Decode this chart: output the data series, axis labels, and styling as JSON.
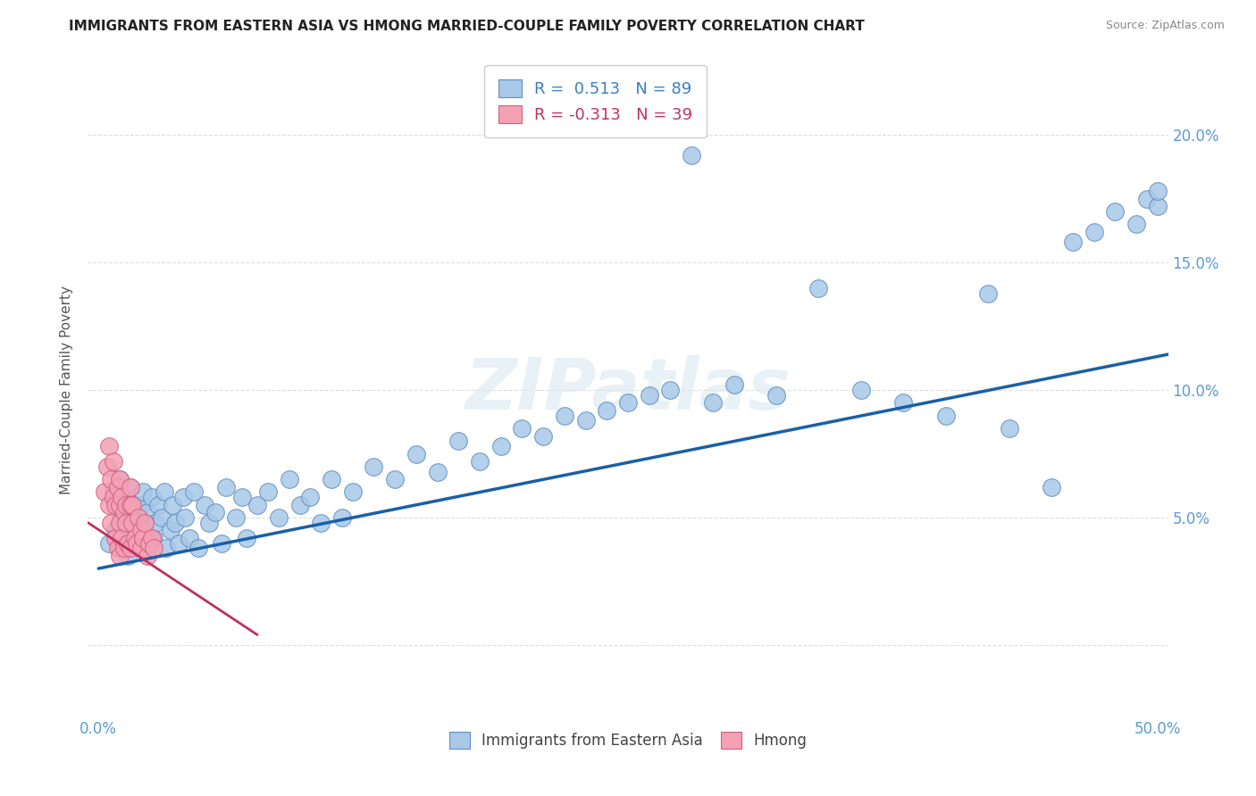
{
  "title": "IMMIGRANTS FROM EASTERN ASIA VS HMONG MARRIED-COUPLE FAMILY POVERTY CORRELATION CHART",
  "source": "Source: ZipAtlas.com",
  "ylabel": "Married-Couple Family Poverty",
  "xlim": [
    0.0,
    0.505
  ],
  "ylim": [
    -0.028,
    0.228
  ],
  "xtick_positions": [
    0.0,
    0.05,
    0.1,
    0.15,
    0.2,
    0.25,
    0.3,
    0.35,
    0.4,
    0.45,
    0.5
  ],
  "xticklabels": [
    "0.0%",
    "",
    "",
    "",
    "",
    "",
    "",
    "",
    "",
    "",
    "50.0%"
  ],
  "ytick_positions": [
    0.0,
    0.05,
    0.1,
    0.15,
    0.2
  ],
  "yticklabels_right": [
    "",
    "5.0%",
    "10.0%",
    "15.0%",
    "20.0%"
  ],
  "legend1_r": "0.513",
  "legend1_n": "89",
  "legend2_r": "-0.313",
  "legend2_n": "39",
  "blue_color": "#a8c8e8",
  "pink_color": "#f4a0b5",
  "blue_edge_color": "#6090c0",
  "pink_edge_color": "#d06080",
  "blue_trend_x": [
    0.0,
    0.505
  ],
  "blue_trend_y": [
    0.03,
    0.114
  ],
  "pink_trend_x": [
    -0.005,
    0.075
  ],
  "pink_trend_y": [
    0.048,
    0.004
  ],
  "blue_label": "Immigrants from Eastern Asia",
  "pink_label": "Hmong",
  "watermark": "ZIPatlas",
  "bg_color": "#ffffff",
  "grid_color": "#dddddd",
  "tick_color": "#5b9bd5",
  "title_color": "#222222",
  "source_color": "#888888",
  "ylabel_color": "#555555",
  "blue_points_x": [
    0.005,
    0.007,
    0.008,
    0.009,
    0.01,
    0.01,
    0.011,
    0.012,
    0.013,
    0.014,
    0.015,
    0.015,
    0.016,
    0.017,
    0.018,
    0.019,
    0.02,
    0.02,
    0.021,
    0.022,
    0.023,
    0.024,
    0.025,
    0.026,
    0.027,
    0.028,
    0.03,
    0.031,
    0.032,
    0.034,
    0.035,
    0.036,
    0.038,
    0.04,
    0.041,
    0.043,
    0.045,
    0.047,
    0.05,
    0.052,
    0.055,
    0.058,
    0.06,
    0.065,
    0.068,
    0.07,
    0.075,
    0.08,
    0.085,
    0.09,
    0.095,
    0.1,
    0.105,
    0.11,
    0.115,
    0.12,
    0.13,
    0.14,
    0.15,
    0.16,
    0.17,
    0.18,
    0.19,
    0.2,
    0.21,
    0.22,
    0.23,
    0.24,
    0.25,
    0.26,
    0.27,
    0.28,
    0.29,
    0.3,
    0.32,
    0.34,
    0.36,
    0.38,
    0.4,
    0.42,
    0.43,
    0.45,
    0.46,
    0.47,
    0.48,
    0.49,
    0.495,
    0.5,
    0.5
  ],
  "blue_points_y": [
    0.04,
    0.06,
    0.045,
    0.055,
    0.065,
    0.038,
    0.05,
    0.042,
    0.058,
    0.035,
    0.048,
    0.062,
    0.04,
    0.055,
    0.045,
    0.05,
    0.055,
    0.038,
    0.06,
    0.045,
    0.052,
    0.04,
    0.058,
    0.042,
    0.048,
    0.055,
    0.05,
    0.06,
    0.038,
    0.045,
    0.055,
    0.048,
    0.04,
    0.058,
    0.05,
    0.042,
    0.06,
    0.038,
    0.055,
    0.048,
    0.052,
    0.04,
    0.062,
    0.05,
    0.058,
    0.042,
    0.055,
    0.06,
    0.05,
    0.065,
    0.055,
    0.058,
    0.048,
    0.065,
    0.05,
    0.06,
    0.07,
    0.065,
    0.075,
    0.068,
    0.08,
    0.072,
    0.078,
    0.085,
    0.082,
    0.09,
    0.088,
    0.092,
    0.095,
    0.098,
    0.1,
    0.192,
    0.095,
    0.102,
    0.098,
    0.14,
    0.1,
    0.095,
    0.09,
    0.138,
    0.085,
    0.062,
    0.158,
    0.162,
    0.17,
    0.165,
    0.175,
    0.172,
    0.178
  ],
  "pink_points_x": [
    0.003,
    0.004,
    0.005,
    0.005,
    0.006,
    0.006,
    0.007,
    0.007,
    0.008,
    0.008,
    0.009,
    0.009,
    0.01,
    0.01,
    0.01,
    0.01,
    0.011,
    0.011,
    0.012,
    0.012,
    0.013,
    0.013,
    0.014,
    0.015,
    0.015,
    0.015,
    0.016,
    0.016,
    0.017,
    0.018,
    0.019,
    0.02,
    0.02,
    0.021,
    0.022,
    0.023,
    0.024,
    0.025,
    0.026
  ],
  "pink_points_y": [
    0.06,
    0.07,
    0.055,
    0.078,
    0.048,
    0.065,
    0.058,
    0.072,
    0.042,
    0.055,
    0.038,
    0.062,
    0.048,
    0.055,
    0.065,
    0.035,
    0.058,
    0.042,
    0.052,
    0.038,
    0.055,
    0.048,
    0.04,
    0.055,
    0.062,
    0.038,
    0.048,
    0.055,
    0.042,
    0.04,
    0.05,
    0.045,
    0.038,
    0.042,
    0.048,
    0.035,
    0.04,
    0.042,
    0.038
  ]
}
